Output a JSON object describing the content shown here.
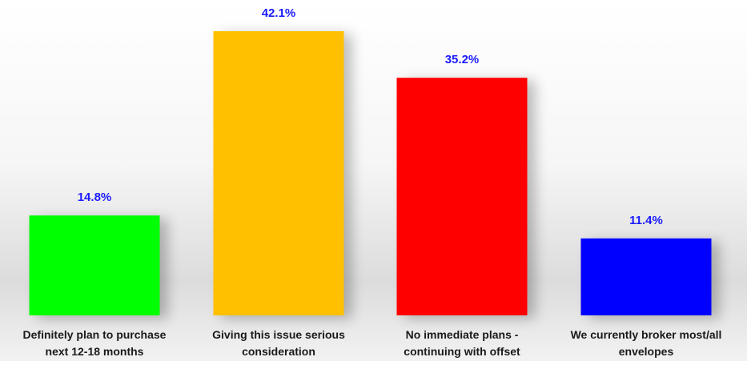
{
  "chart_data": {
    "type": "bar",
    "title": "",
    "xlabel": "",
    "ylabel": "",
    "ylim": [
      0,
      42.1
    ],
    "grid": false,
    "legend": "none",
    "categories": [
      [
        "Definitely plan to purchase",
        "next 12-18 months"
      ],
      [
        "Giving this issue serious",
        "consideration"
      ],
      [
        "No immediate plans -",
        "continuing with offset"
      ],
      [
        "We currently broker most/all",
        "envelopes"
      ]
    ],
    "values": [
      14.8,
      42.1,
      35.2,
      11.4
    ],
    "value_labels": [
      "14.8%",
      "42.1%",
      "35.2%",
      "11.4%"
    ],
    "colors": [
      "#00ff00",
      "#ffc000",
      "#ff0000",
      "#0000ff"
    ],
    "value_label_color": "#1a1aff"
  }
}
